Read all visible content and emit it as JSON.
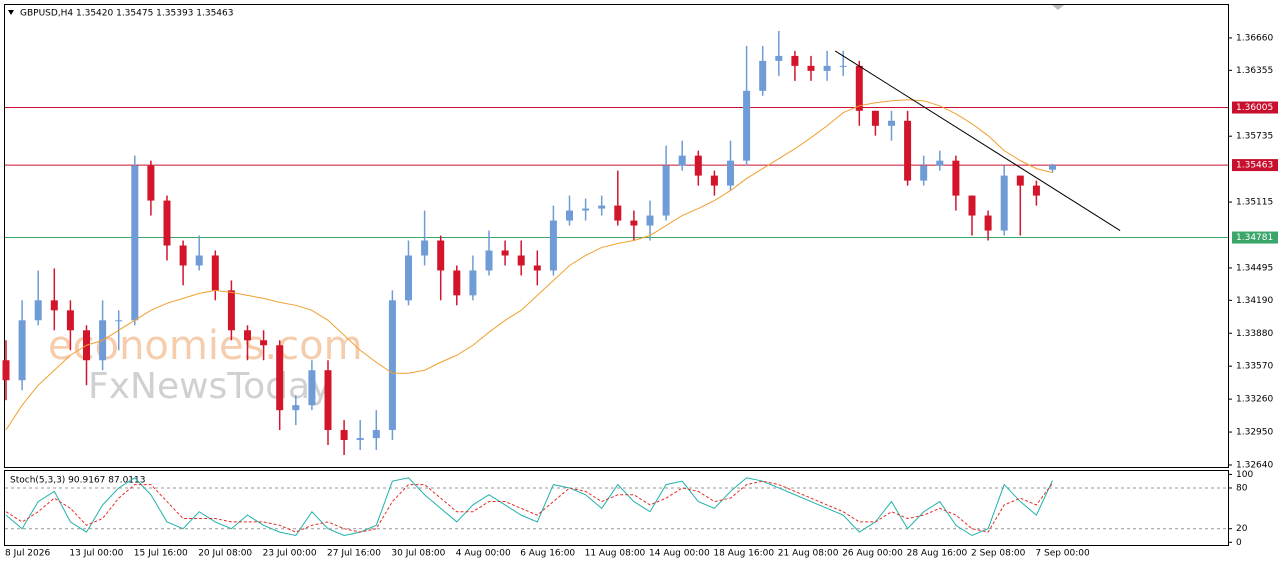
{
  "chart_data": [
    {
      "type": "candlestick",
      "title": "GBPUSD,H4  1.35420 1.35475 1.35393 1.35463",
      "watermark": [
        "economies.com",
        "FxNewsToday"
      ],
      "categories": [
        "8 Jul 2026",
        null,
        null,
        null,
        "13 Jul 00:00",
        null,
        null,
        null,
        "15 Jul 16:00",
        null,
        null,
        null,
        "20 Jul 08:00",
        null,
        null,
        null,
        "23 Jul 00:00",
        null,
        null,
        null,
        "27 Jul 16:00",
        null,
        null,
        null,
        "30 Jul 08:00",
        null,
        null,
        null,
        "4 Aug 00:00",
        null,
        null,
        null,
        "6 Aug 16:00",
        null,
        null,
        null,
        "11 Aug 08:00",
        null,
        null,
        null,
        "14 Aug 00:00",
        null,
        null,
        null,
        "18 Aug 16:00",
        null,
        null,
        null,
        "21 Aug 08:00",
        null,
        null,
        null,
        "26 Aug 00:00",
        null,
        null,
        null,
        "28 Aug 16:00",
        null,
        null,
        null,
        "2 Sep 08:00",
        null,
        null,
        null,
        "7 Sep 00:00",
        null
      ],
      "open": [
        1.33626,
        1.33438,
        1.34002,
        1.3419,
        1.34096,
        1.33908,
        1.33626,
        1.34002,
        1.34002,
        1.35458,
        1.35129,
        1.34706,
        1.34518,
        1.34612,
        1.34284,
        1.33908,
        1.33814,
        1.33767,
        1.33156,
        1.33203,
        1.33532,
        1.32969,
        1.32875,
        1.32893,
        1.32969,
        1.3419,
        1.34612,
        1.34753,
        1.34471,
        1.34237,
        1.34471,
        1.34659,
        1.34612,
        1.34518,
        1.34471,
        1.34941,
        1.35035,
        1.35054,
        1.35082,
        1.34941,
        1.34894,
        1.34988,
        1.35458,
        1.35552,
        1.35364,
        1.3527,
        1.35505,
        1.36162,
        1.36444,
        1.36491,
        1.36397,
        1.3635,
        1.36397,
        1.36397,
        1.35974,
        1.35833,
        1.3588,
        1.35317,
        1.35458,
        1.35505,
        1.35176,
        1.34988,
        1.34847,
        1.35364,
        1.3527,
        1.3542
      ],
      "high": [
        1.33814,
        1.3419,
        1.34471,
        1.3449,
        1.3419,
        1.33955,
        1.3419,
        1.34096,
        1.35552,
        1.35505,
        1.35176,
        1.34753,
        1.348,
        1.34659,
        1.34377,
        1.33955,
        1.33908,
        1.33814,
        1.33297,
        1.33626,
        1.33626,
        1.33062,
        1.33062,
        1.33156,
        1.34284,
        1.34753,
        1.35035,
        1.348,
        1.34518,
        1.34612,
        1.34847,
        1.34753,
        1.34753,
        1.34659,
        1.35082,
        1.35176,
        1.35148,
        1.35176,
        1.35411,
        1.35035,
        1.35129,
        1.35646,
        1.35693,
        1.35599,
        1.35411,
        1.35693,
        1.36585,
        1.36585,
        1.36726,
        1.36538,
        1.36491,
        1.36538,
        1.36538,
        1.36444,
        1.35974,
        1.35974,
        1.35974,
        1.35552,
        1.35599,
        1.35552,
        1.35176,
        1.35035,
        1.35458,
        1.35364,
        1.35317,
        1.35475
      ],
      "low": [
        1.3325,
        1.33344,
        1.33955,
        1.33908,
        1.3372,
        1.33391,
        1.33532,
        1.3372,
        1.33955,
        1.34988,
        1.34565,
        1.34331,
        1.34471,
        1.3419,
        1.33814,
        1.33626,
        1.33626,
        1.32969,
        1.33015,
        1.33156,
        1.32828,
        1.32734,
        1.32781,
        1.32781,
        1.32875,
        1.34143,
        1.34518,
        1.3419,
        1.34143,
        1.3419,
        1.34424,
        1.34518,
        1.34424,
        1.34331,
        1.34424,
        1.34894,
        1.34941,
        1.34988,
        1.34894,
        1.34753,
        1.34753,
        1.34941,
        1.35411,
        1.3527,
        1.35176,
        1.35223,
        1.35458,
        1.36115,
        1.36303,
        1.36256,
        1.36256,
        1.36256,
        1.36303,
        1.35833,
        1.3574,
        1.35693,
        1.3527,
        1.3527,
        1.35411,
        1.35035,
        1.348,
        1.34753,
        1.348,
        1.348,
        1.35082,
        1.35393
      ],
      "close": [
        1.33438,
        1.34002,
        1.3419,
        1.34096,
        1.33908,
        1.33626,
        1.34002,
        1.34002,
        1.35458,
        1.35129,
        1.34706,
        1.34518,
        1.34612,
        1.34284,
        1.33908,
        1.33814,
        1.33767,
        1.33156,
        1.33203,
        1.33532,
        1.32969,
        1.32875,
        1.32893,
        1.32969,
        1.3419,
        1.34612,
        1.34753,
        1.34471,
        1.34237,
        1.34471,
        1.34659,
        1.34612,
        1.34518,
        1.34471,
        1.34941,
        1.35035,
        1.35054,
        1.35082,
        1.34941,
        1.34894,
        1.34988,
        1.35458,
        1.35552,
        1.35364,
        1.3527,
        1.35505,
        1.36162,
        1.36444,
        1.36491,
        1.36397,
        1.3635,
        1.36397,
        1.36397,
        1.35974,
        1.35833,
        1.3588,
        1.35317,
        1.35458,
        1.35505,
        1.35176,
        1.34988,
        1.34847,
        1.35364,
        1.3527,
        1.35176,
        1.35463
      ],
      "up_color": "#6f9bd6",
      "down_color": "#d3152b",
      "ma": {
        "color": "#f0a030",
        "values": [
          1.32969,
          1.33203,
          1.33391,
          1.33532,
          1.33673,
          1.33767,
          1.33814,
          1.33908,
          1.34002,
          1.34096,
          1.34162,
          1.34208,
          1.34255,
          1.34284,
          1.34265,
          1.34237,
          1.34208,
          1.34171,
          1.34143,
          1.34096,
          1.34002,
          1.33861,
          1.3372,
          1.33607,
          1.33504,
          1.33504,
          1.33532,
          1.33607,
          1.33673,
          1.33767,
          1.33889,
          1.34002,
          1.34096,
          1.34237,
          1.34377,
          1.34518,
          1.34612,
          1.34688,
          1.34725,
          1.34753,
          1.348,
          1.34894,
          1.34988,
          1.35054,
          1.35129,
          1.35223,
          1.35336,
          1.3543,
          1.35523,
          1.35617,
          1.35721,
          1.35833,
          1.35956,
          1.36021,
          1.3605,
          1.36068,
          1.36078,
          1.36068,
          1.36021,
          1.35946,
          1.35852,
          1.3574,
          1.35599,
          1.35505,
          1.3543,
          1.35392
        ]
      },
      "ylim": [
        1.32621,
        1.3697
      ],
      "yticks": [
        {
          "value": 1.3666,
          "label": "1.36660"
        },
        1.36355,
        1.35735,
        1.35115,
        1.34495,
        {
          "value": 1.3419,
          "label": "1.34190"
        },
        {
          "value": 1.3388,
          "label": "1.33880"
        },
        {
          "value": 1.3357,
          "label": "1.33570"
        },
        {
          "value": 1.3326,
          "label": "1.33260"
        },
        {
          "value": 1.3295,
          "label": "1.32950"
        },
        {
          "value": 1.3264,
          "label": "1.32640"
        }
      ],
      "levels": [
        {
          "value": 1.36005,
          "color": "#c8102e"
        },
        {
          "value": 1.35463,
          "color": "#c8102e"
        },
        {
          "value": 1.34781,
          "color": "#3aa66a"
        }
      ],
      "trendline": {
        "color": "#000000",
        "x": [
          51.5,
          69.2
        ],
        "values": [
          1.36538,
          1.34847
        ]
      }
    },
    {
      "type": "line",
      "title": "Stoch(5,3,3) 90.9167 87.0113",
      "ylim": [
        -4,
        105
      ],
      "yticks": [
        100,
        80,
        20,
        0
      ],
      "levels": [
        80,
        20
      ],
      "series": [
        {
          "color": "#20b2aa",
          "dash": false,
          "values": [
            40,
            20,
            60,
            75,
            30,
            15,
            55,
            80,
            95,
            70,
            30,
            20,
            45,
            30,
            20,
            40,
            25,
            15,
            10,
            45,
            20,
            10,
            15,
            25,
            90,
            95,
            70,
            50,
            30,
            55,
            70,
            55,
            40,
            30,
            85,
            80,
            70,
            50,
            85,
            60,
            45,
            85,
            90,
            60,
            50,
            75,
            95,
            90,
            80,
            70,
            60,
            50,
            40,
            15,
            30,
            60,
            20,
            45,
            60,
            25,
            10,
            20,
            85,
            60,
            40,
            90.9167
          ]
        },
        {
          "color": "#e0302a",
          "dash": true,
          "values": [
            45,
            30,
            45,
            65,
            50,
            25,
            35,
            65,
            85,
            85,
            60,
            35,
            35,
            35,
            30,
            30,
            30,
            25,
            15,
            25,
            30,
            20,
            15,
            20,
            60,
            85,
            85,
            65,
            45,
            45,
            60,
            60,
            50,
            40,
            60,
            80,
            75,
            60,
            70,
            70,
            55,
            65,
            80,
            75,
            60,
            65,
            85,
            90,
            85,
            75,
            65,
            55,
            45,
            30,
            30,
            45,
            35,
            40,
            50,
            40,
            20,
            15,
            55,
            65,
            55,
            87.0113
          ]
        }
      ]
    }
  ]
}
